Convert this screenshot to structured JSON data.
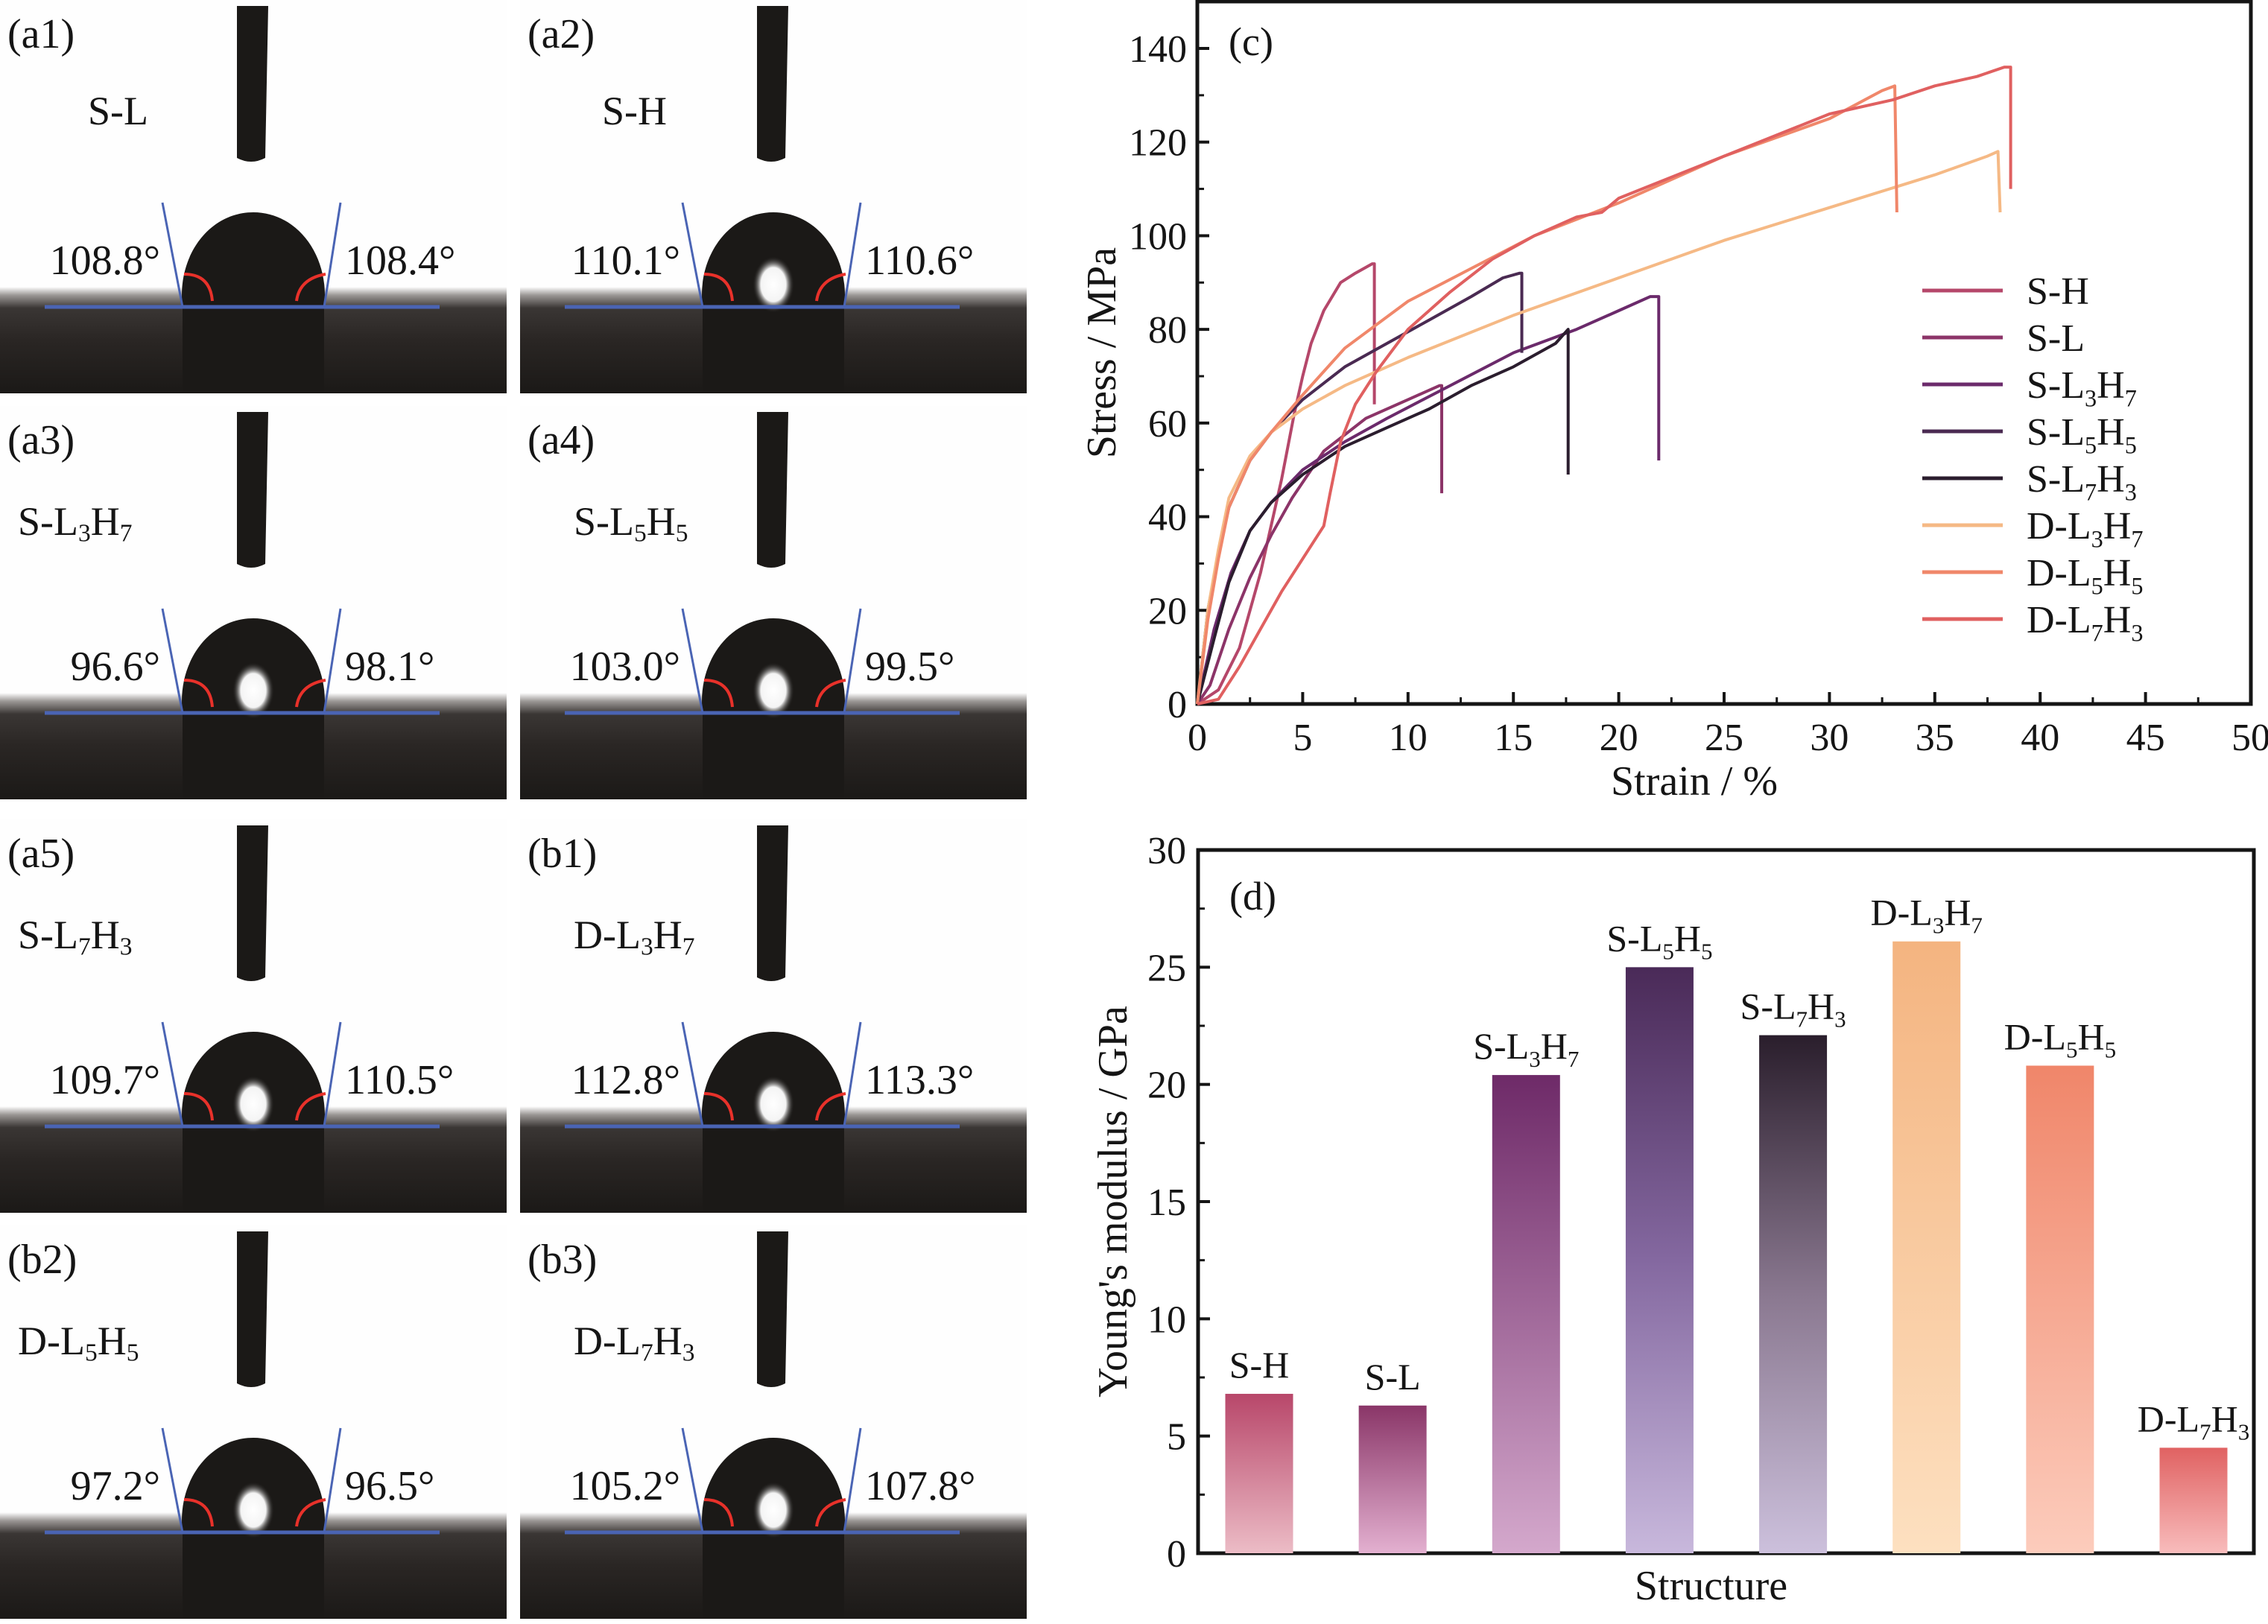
{
  "figure": {
    "photo_panels": [
      {
        "id": "a1",
        "label": "(a1)",
        "sample": "S-L",
        "sample_parts": [
          "S-L",
          "",
          "",
          ""
        ],
        "left_angle": "108.8°",
        "right_angle": "108.4°",
        "highlight": false
      },
      {
        "id": "a2",
        "label": "(a2)",
        "sample": "S-H",
        "sample_parts": [
          "S-H",
          "",
          "",
          ""
        ],
        "left_angle": "110.1°",
        "right_angle": "110.6°",
        "highlight": true
      },
      {
        "id": "a3",
        "label": "(a3)",
        "sample": "S-L3H7",
        "sample_parts": [
          "S-L",
          "3",
          "H",
          "7"
        ],
        "left_angle": "96.6°",
        "right_angle": "98.1°",
        "highlight": true
      },
      {
        "id": "a4",
        "label": "(a4)",
        "sample": "S-L5H5",
        "sample_parts": [
          "S-L",
          "5",
          "H",
          "5"
        ],
        "left_angle": "103.0°",
        "right_angle": "99.5°",
        "highlight": true
      },
      {
        "id": "a5",
        "label": "(a5)",
        "sample": "S-L7H3",
        "sample_parts": [
          "S-L",
          "7",
          "H",
          "3"
        ],
        "left_angle": "109.7°",
        "right_angle": "110.5°",
        "highlight": true
      },
      {
        "id": "b1",
        "label": "(b1)",
        "sample": "D-L3H7",
        "sample_parts": [
          "D-L",
          "3",
          "H",
          "7"
        ],
        "left_angle": "112.8°",
        "right_angle": "113.3°",
        "highlight": true
      },
      {
        "id": "b2",
        "label": "(b2)",
        "sample": "D-L5H5",
        "sample_parts": [
          "D-L",
          "5",
          "H",
          "5"
        ],
        "left_angle": "97.2°",
        "right_angle": "96.5°",
        "highlight": true
      },
      {
        "id": "b3",
        "label": "(b3)",
        "sample": "D-L7H3",
        "sample_parts": [
          "D-L",
          "7",
          "H",
          "3"
        ],
        "left_angle": "105.2°",
        "right_angle": "107.8°",
        "highlight": true
      }
    ],
    "colors": {
      "baseline": "#4a64b4",
      "angle_arc": "#e8312a",
      "photo_dark": "#1b1917"
    }
  },
  "chart_data": [
    {
      "type": "line",
      "panel_label": "(c)",
      "title": "",
      "xlabel": "Strain / %",
      "ylabel": "Stress / MPa",
      "xlim": [
        0,
        50
      ],
      "ylim": [
        0,
        150
      ],
      "xticks": [
        0,
        5,
        10,
        15,
        20,
        25,
        30,
        35,
        40,
        45,
        50
      ],
      "yticks": [
        0,
        20,
        40,
        60,
        80,
        100,
        120,
        140
      ],
      "grid": false,
      "legend_position": "right",
      "series": [
        {
          "name": "S-H",
          "name_parts": [
            "S-H",
            "",
            "",
            ""
          ],
          "color": "#b5476a",
          "x": [
            0,
            1.0,
            2.0,
            3.0,
            4.0,
            4.6,
            5.0,
            5.4,
            6.0,
            6.8,
            7.5,
            8.3,
            8.4,
            8.4
          ],
          "y": [
            0,
            3,
            12,
            28,
            48,
            62,
            70,
            77,
            84,
            90,
            92,
            94,
            94,
            64
          ]
        },
        {
          "name": "S-L",
          "name_parts": [
            "S-L",
            "",
            "",
            ""
          ],
          "color": "#8c3468",
          "x": [
            0,
            0.6,
            1.5,
            2.5,
            3.5,
            4.5,
            6.0,
            8.0,
            10.0,
            11.5,
            11.6,
            11.6
          ],
          "y": [
            0,
            4,
            16,
            27,
            36,
            44,
            54,
            61,
            65,
            68,
            68,
            45
          ]
        },
        {
          "name": "S-L3H7",
          "name_parts": [
            "S-L",
            "3",
            "H",
            "7"
          ],
          "color": "#6b2a6b",
          "x": [
            0,
            0.8,
            1.6,
            2.5,
            3.5,
            5.0,
            7.0,
            9.0,
            12.0,
            15.0,
            18.0,
            20.0,
            21.5,
            21.9,
            21.9
          ],
          "y": [
            0,
            16,
            28,
            37,
            43,
            50,
            56,
            61,
            68,
            75,
            80,
            84,
            87,
            87,
            52
          ]
        },
        {
          "name": "S-L5H5",
          "name_parts": [
            "S-L",
            "5",
            "H",
            "5"
          ],
          "color": "#4a2a52",
          "x": [
            0,
            0.5,
            1.0,
            1.5,
            2.5,
            3.5,
            5.0,
            7.0,
            9.0,
            11.0,
            13.0,
            14.5,
            15.3,
            15.4,
            15.4
          ],
          "y": [
            0,
            20,
            32,
            42,
            52,
            58,
            65,
            72,
            77,
            82,
            87,
            91,
            92,
            92,
            75
          ]
        },
        {
          "name": "S-L7H3",
          "name_parts": [
            "S-L",
            "7",
            "H",
            "3"
          ],
          "color": "#2b1d2e",
          "x": [
            0,
            0.8,
            1.5,
            2.5,
            3.5,
            5.0,
            7.0,
            9.0,
            11.0,
            13.0,
            15.0,
            17.0,
            17.6,
            17.6
          ],
          "y": [
            0,
            14,
            26,
            37,
            43,
            49,
            55,
            59,
            63,
            68,
            72,
            77,
            80,
            49
          ]
        },
        {
          "name": "D-L3H7",
          "name_parts": [
            "D-L",
            "3",
            "H",
            "7"
          ],
          "color": "#f5b985",
          "x": [
            0,
            0.5,
            1.0,
            1.5,
            2.5,
            3.5,
            5.0,
            7.0,
            10.0,
            15.0,
            20.0,
            25.0,
            30.0,
            35.0,
            37.5,
            38.0,
            38.1
          ],
          "y": [
            0,
            20,
            33,
            44,
            53,
            58,
            63,
            68,
            74,
            83,
            91,
            99,
            106,
            113,
            117,
            118,
            105
          ]
        },
        {
          "name": "D-L5H5",
          "name_parts": [
            "D-L",
            "5",
            "H",
            "5"
          ],
          "color": "#f0876a",
          "x": [
            0,
            0.5,
            1.0,
            1.5,
            2.5,
            3.5,
            5.0,
            7.0,
            10.0,
            13.0,
            16.0,
            20.0,
            25.0,
            30.0,
            32.5,
            33.1,
            33.2
          ],
          "y": [
            0,
            18,
            31,
            42,
            52,
            58,
            66,
            76,
            86,
            93,
            100,
            107,
            117,
            125,
            131,
            132,
            105
          ]
        },
        {
          "name": "D-L7H3",
          "name_parts": [
            "D-L",
            "7",
            "H",
            "3"
          ],
          "color": "#e06060",
          "x": [
            0,
            1.0,
            2.0,
            3.0,
            4.0,
            5.0,
            6.0,
            6.3,
            6.8,
            7.5,
            8.5,
            10.0,
            12.0,
            14.0,
            16.0,
            18.0,
            19.2,
            20.0,
            25.0,
            30.0,
            33.0,
            35.0,
            37.0,
            38.3,
            38.6,
            38.6
          ],
          "y": [
            0,
            1,
            8,
            16,
            24,
            31,
            38,
            45,
            56,
            64,
            71,
            80,
            88,
            95,
            100,
            104,
            105,
            108,
            117,
            126,
            129,
            132,
            134,
            136,
            136,
            110
          ]
        }
      ]
    },
    {
      "type": "bar",
      "panel_label": "(d)",
      "title": "",
      "xlabel": "Structure",
      "ylabel": "Young's modulus / GPa",
      "ylim": [
        0,
        30
      ],
      "yticks": [
        0,
        5,
        10,
        15,
        20,
        25,
        30
      ],
      "grid": false,
      "categories": [
        "S-H",
        "S-L",
        "S-L3H7",
        "S-L5H5",
        "S-L7H3",
        "D-L3H7",
        "D-L5H5",
        "D-L7H3"
      ],
      "category_parts": [
        [
          "S-H",
          "",
          "",
          ""
        ],
        [
          "S-L",
          "",
          "",
          ""
        ],
        [
          "S-L",
          "3",
          "H",
          "7"
        ],
        [
          "S-L",
          "5",
          "H",
          "5"
        ],
        [
          "S-L",
          "7",
          "H",
          "3"
        ],
        [
          "D-L",
          "3",
          "H",
          "7"
        ],
        [
          "D-L",
          "5",
          "H",
          "5"
        ],
        [
          "D-L",
          "7",
          "H",
          "3"
        ]
      ],
      "values": [
        6.8,
        6.3,
        20.4,
        25.0,
        22.1,
        26.1,
        20.8,
        4.5
      ],
      "bar_gradients": [
        [
          "#b8476a",
          "#ecbcc6"
        ],
        [
          "#8a3668",
          "#e3b0d0"
        ],
        [
          "#6e2a68",
          "#d4a8cc"
        ],
        [
          "#4a2a58",
          "#8468a0",
          "#c8b8dc"
        ],
        [
          "#2a1e2c",
          "#8a7890",
          "#ccc0dc"
        ],
        [
          "#f4b480",
          "#fde0c0"
        ],
        [
          "#f0866a",
          "#fcccbc"
        ],
        [
          "#e06262",
          "#f8bcbc"
        ]
      ]
    }
  ]
}
